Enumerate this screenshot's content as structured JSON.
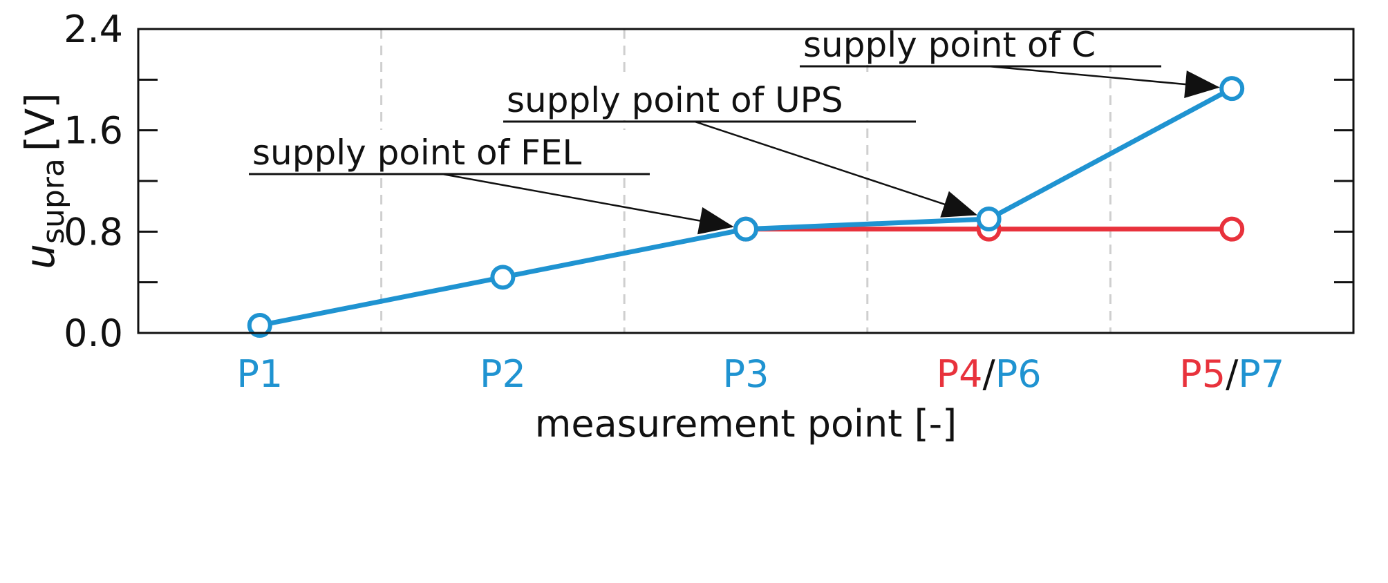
{
  "chart_data": {
    "type": "line",
    "xlabel": "measurement point [-]",
    "ylabel": {
      "main": "u",
      "subscript": "supra",
      "unit": "[V]"
    },
    "ylim": [
      0.0,
      2.4
    ],
    "yticks": [
      "0.0",
      "0.8",
      "1.6",
      "2.4"
    ],
    "grid": "vertical-dashed",
    "categories": [
      {
        "parts": [
          {
            "text": "P1",
            "series": 0
          }
        ]
      },
      {
        "parts": [
          {
            "text": "P2",
            "series": 0
          }
        ]
      },
      {
        "parts": [
          {
            "text": "P3",
            "series": 0
          }
        ]
      },
      {
        "parts": [
          {
            "text": "P4",
            "series": 1
          },
          {
            "text": "/",
            "series": null
          },
          {
            "text": "P6",
            "series": 0
          }
        ]
      },
      {
        "parts": [
          {
            "text": "P5",
            "series": 1
          },
          {
            "text": "/",
            "series": null
          },
          {
            "text": "P7",
            "series": 0
          }
        ]
      }
    ],
    "series": [
      {
        "color": "#1f93d1",
        "points": [
          {
            "x": 0,
            "y": 0.06
          },
          {
            "x": 1,
            "y": 0.44
          },
          {
            "x": 2,
            "y": 0.82
          },
          {
            "x": 3,
            "y": 0.9
          },
          {
            "x": 4,
            "y": 1.93
          }
        ]
      },
      {
        "color": "#e8323c",
        "points": [
          {
            "x": 2,
            "y": 0.82
          },
          {
            "x": 3,
            "y": 0.82
          },
          {
            "x": 4,
            "y": 0.82
          }
        ]
      }
    ],
    "annotations": [
      {
        "text": "supply point of FEL",
        "target": {
          "x": 2,
          "y": 0.82
        }
      },
      {
        "text": "supply point of UPS",
        "target": {
          "x": 3,
          "y": 0.9
        }
      },
      {
        "text": "supply point of C",
        "target": {
          "x": 4,
          "y": 1.93
        }
      }
    ]
  }
}
